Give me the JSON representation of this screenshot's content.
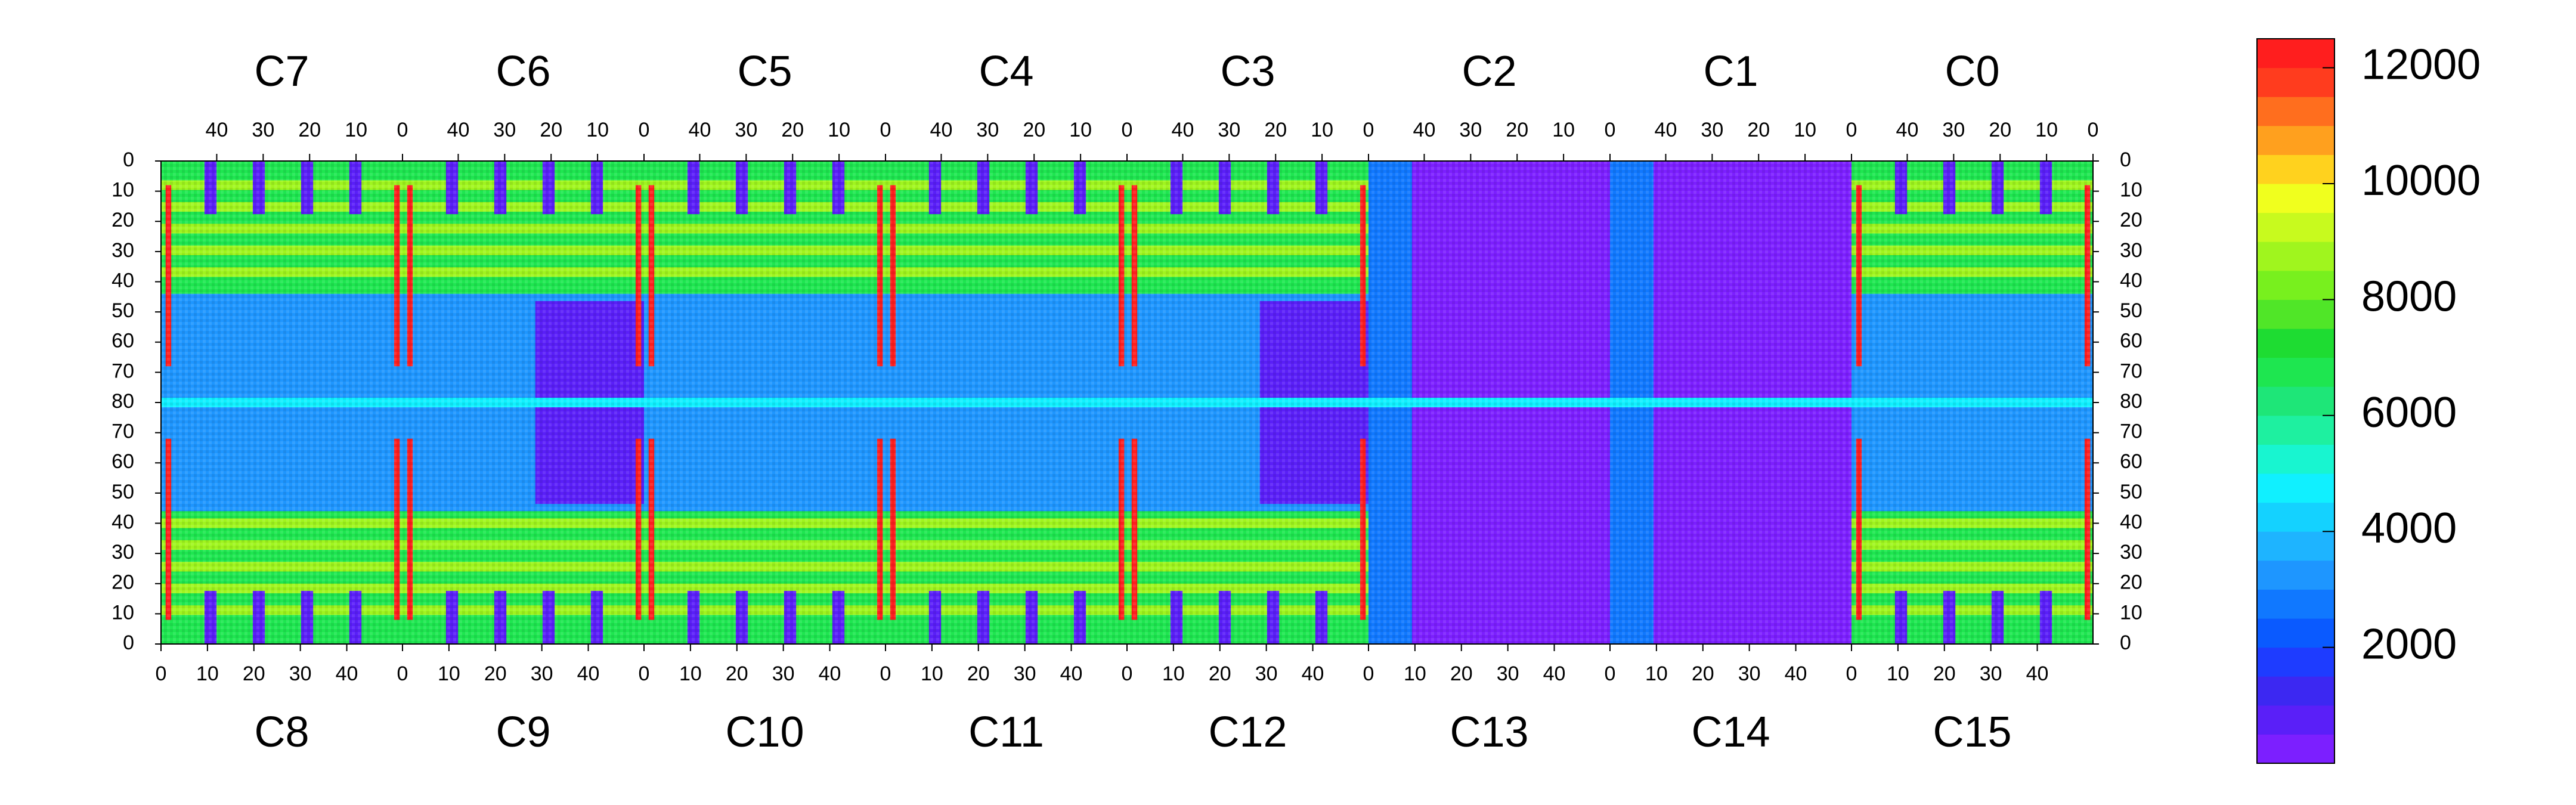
{
  "chart_data": {
    "type": "heatmap",
    "title": "",
    "top_chips": [
      "C7",
      "C6",
      "C5",
      "C4",
      "C3",
      "C2",
      "C1",
      "C0"
    ],
    "bottom_chips": [
      "C8",
      "C9",
      "C10",
      "C11",
      "C12",
      "C13",
      "C14",
      "C15"
    ],
    "top_column_ticks": [
      "40",
      "30",
      "20",
      "10",
      "0"
    ],
    "bottom_column_ticks": [
      "0",
      "10",
      "20",
      "30",
      "40"
    ],
    "columns_per_chip": 52,
    "y_ticks": [
      "0",
      "10",
      "20",
      "30",
      "40",
      "50",
      "60",
      "70",
      "80",
      "70",
      "60",
      "50",
      "40",
      "30",
      "20",
      "10",
      "0"
    ],
    "rows_per_half": 80,
    "colorbar": {
      "ticks": [
        "2000",
        "4000",
        "6000",
        "8000",
        "10000",
        "12000"
      ],
      "tick_values": [
        2000,
        4000,
        6000,
        8000,
        10000,
        12000
      ],
      "range": [
        0,
        12500
      ],
      "levels": [
        "#7c1fff",
        "#5a1ff8",
        "#3c28f2",
        "#1e3cff",
        "#0a5aff",
        "#1078ff",
        "#1e96ff",
        "#1eb4ff",
        "#14d2ff",
        "#10f0ff",
        "#18f5d0",
        "#1ef0a0",
        "#1ee678",
        "#1ee650",
        "#1edc32",
        "#50e628",
        "#78f01e",
        "#a0f51e",
        "#c8fa1e",
        "#f0ff1e",
        "#ffd21e",
        "#ffa01e",
        "#ff6e1e",
        "#ff3c1e",
        "#ff1e1e"
      ]
    },
    "colors": {
      "background_low": "#7c1fff",
      "hot_column": "#ff1e1e",
      "mid": "#1ee650"
    }
  }
}
